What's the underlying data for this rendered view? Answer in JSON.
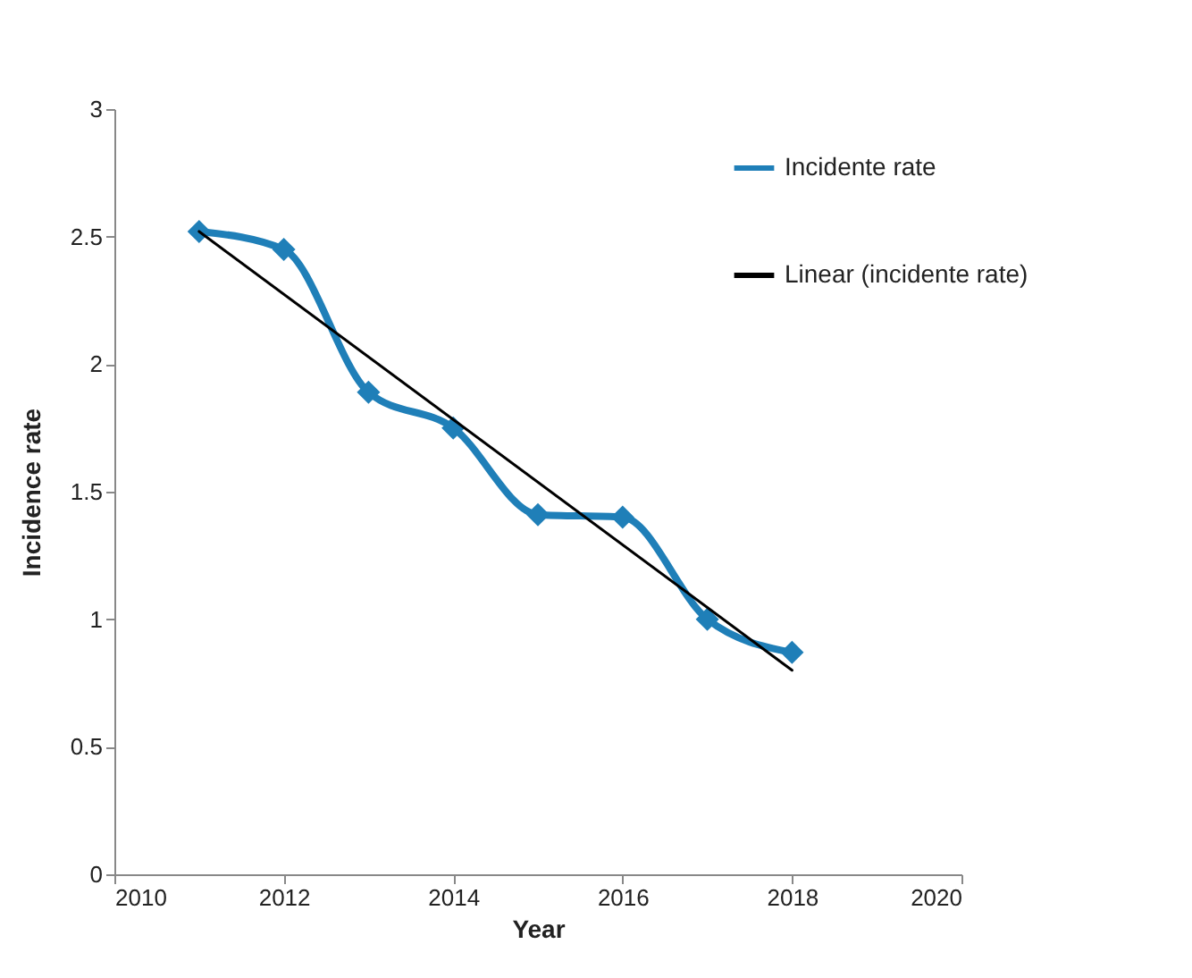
{
  "chart_data": {
    "type": "line",
    "xlabel": "Year",
    "ylabel": "Incidence rate",
    "x": [
      2011,
      2012,
      2013,
      2014,
      2015,
      2016,
      2017,
      2018
    ],
    "series": [
      {
        "name": "Incidente rate",
        "color": "#1f7fb8",
        "values": [
          2.52,
          2.45,
          1.89,
          1.75,
          1.41,
          1.4,
          1.0,
          0.87
        ]
      },
      {
        "name": "Linear (incidente rate)",
        "color": "#000000",
        "type": "line",
        "marker": "none",
        "x": [
          2011,
          2018
        ],
        "values": [
          2.52,
          0.8
        ]
      }
    ],
    "xlim": [
      2010,
      2020
    ],
    "xticks": [
      2010,
      2012,
      2014,
      2016,
      2018,
      2020
    ],
    "ylim": [
      0,
      3
    ],
    "yticks": [
      0,
      0.5,
      1,
      1.5,
      2,
      2.5,
      3
    ],
    "marker": "diamond",
    "legend": "top right"
  }
}
